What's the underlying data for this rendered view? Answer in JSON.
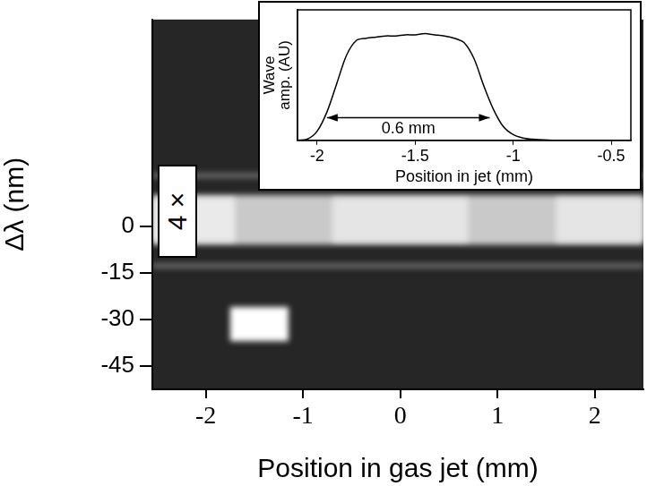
{
  "chart_data": [
    {
      "type": "heatmap",
      "x_label": "Position in gas jet (mm)",
      "y_label": "Δλ (nm)",
      "xlim": [
        -2.55,
        2.5
      ],
      "ylim": [
        -52.5,
        66.5
      ],
      "xticks": [
        -2,
        -1,
        0,
        1,
        2
      ],
      "yticks": [
        0,
        -15,
        -30,
        -45
      ],
      "grid": false,
      "regions": [
        {
          "x": [
            -2.55,
            2.5
          ],
          "y": [
            15.5,
            17
          ],
          "intensity": 0.35
        },
        {
          "x": [
            -2.55,
            2.5
          ],
          "y": [
            -13.5,
            -12
          ],
          "intensity": 0.35
        },
        {
          "x": [
            -2.55,
            2.5
          ],
          "y": [
            -6,
            10
          ],
          "intensity": 0.75
        },
        {
          "x": [
            -2.55,
            -1.7
          ],
          "y": [
            -5,
            9
          ],
          "intensity": 0.9
        },
        {
          "x": [
            -0.7,
            0.7
          ],
          "y": [
            -5,
            9
          ],
          "intensity": 0.88
        },
        {
          "x": [
            1.6,
            2.5
          ],
          "y": [
            -5,
            9
          ],
          "intensity": 0.88
        },
        {
          "x": [
            -1.75,
            -1.15
          ],
          "y": [
            -37,
            -26
          ],
          "intensity": 1
        }
      ],
      "annotations": [
        "4 ×"
      ]
    },
    {
      "type": "line",
      "x_label": "Position in jet (mm)",
      "y_label": "Wave amp. (AU)",
      "xlim": [
        -2.1,
        -0.4
      ],
      "ylim": [
        0,
        1.15
      ],
      "xticks": [
        -2,
        -1.5,
        -1,
        -0.5
      ],
      "tick_labels": "x",
      "grid": false,
      "color": "#000000",
      "line_style": "solid",
      "x": [
        -2.1,
        -2.05,
        -2.0,
        -1.95,
        -1.9,
        -1.85,
        -1.8,
        -1.75,
        -1.7,
        -1.65,
        -1.6,
        -1.55,
        -1.5,
        -1.45,
        -1.4,
        -1.35,
        -1.3,
        -1.25,
        -1.2,
        -1.15,
        -1.1,
        -1.05,
        -1.0,
        -0.95,
        -0.9,
        -0.8,
        -0.7,
        -0.6,
        -0.5,
        -0.4
      ],
      "values": [
        0,
        0.01,
        0.08,
        0.25,
        0.5,
        0.75,
        0.88,
        0.9,
        0.91,
        0.92,
        0.92,
        0.93,
        0.93,
        0.94,
        0.93,
        0.92,
        0.9,
        0.86,
        0.72,
        0.48,
        0.27,
        0.12,
        0.05,
        0.02,
        0.01,
        0,
        0,
        0,
        0,
        0
      ],
      "annotations": [
        {
          "text": "0.6 mm",
          "x": [
            -1.95,
            -1.12
          ],
          "y": 0.2
        }
      ]
    }
  ]
}
